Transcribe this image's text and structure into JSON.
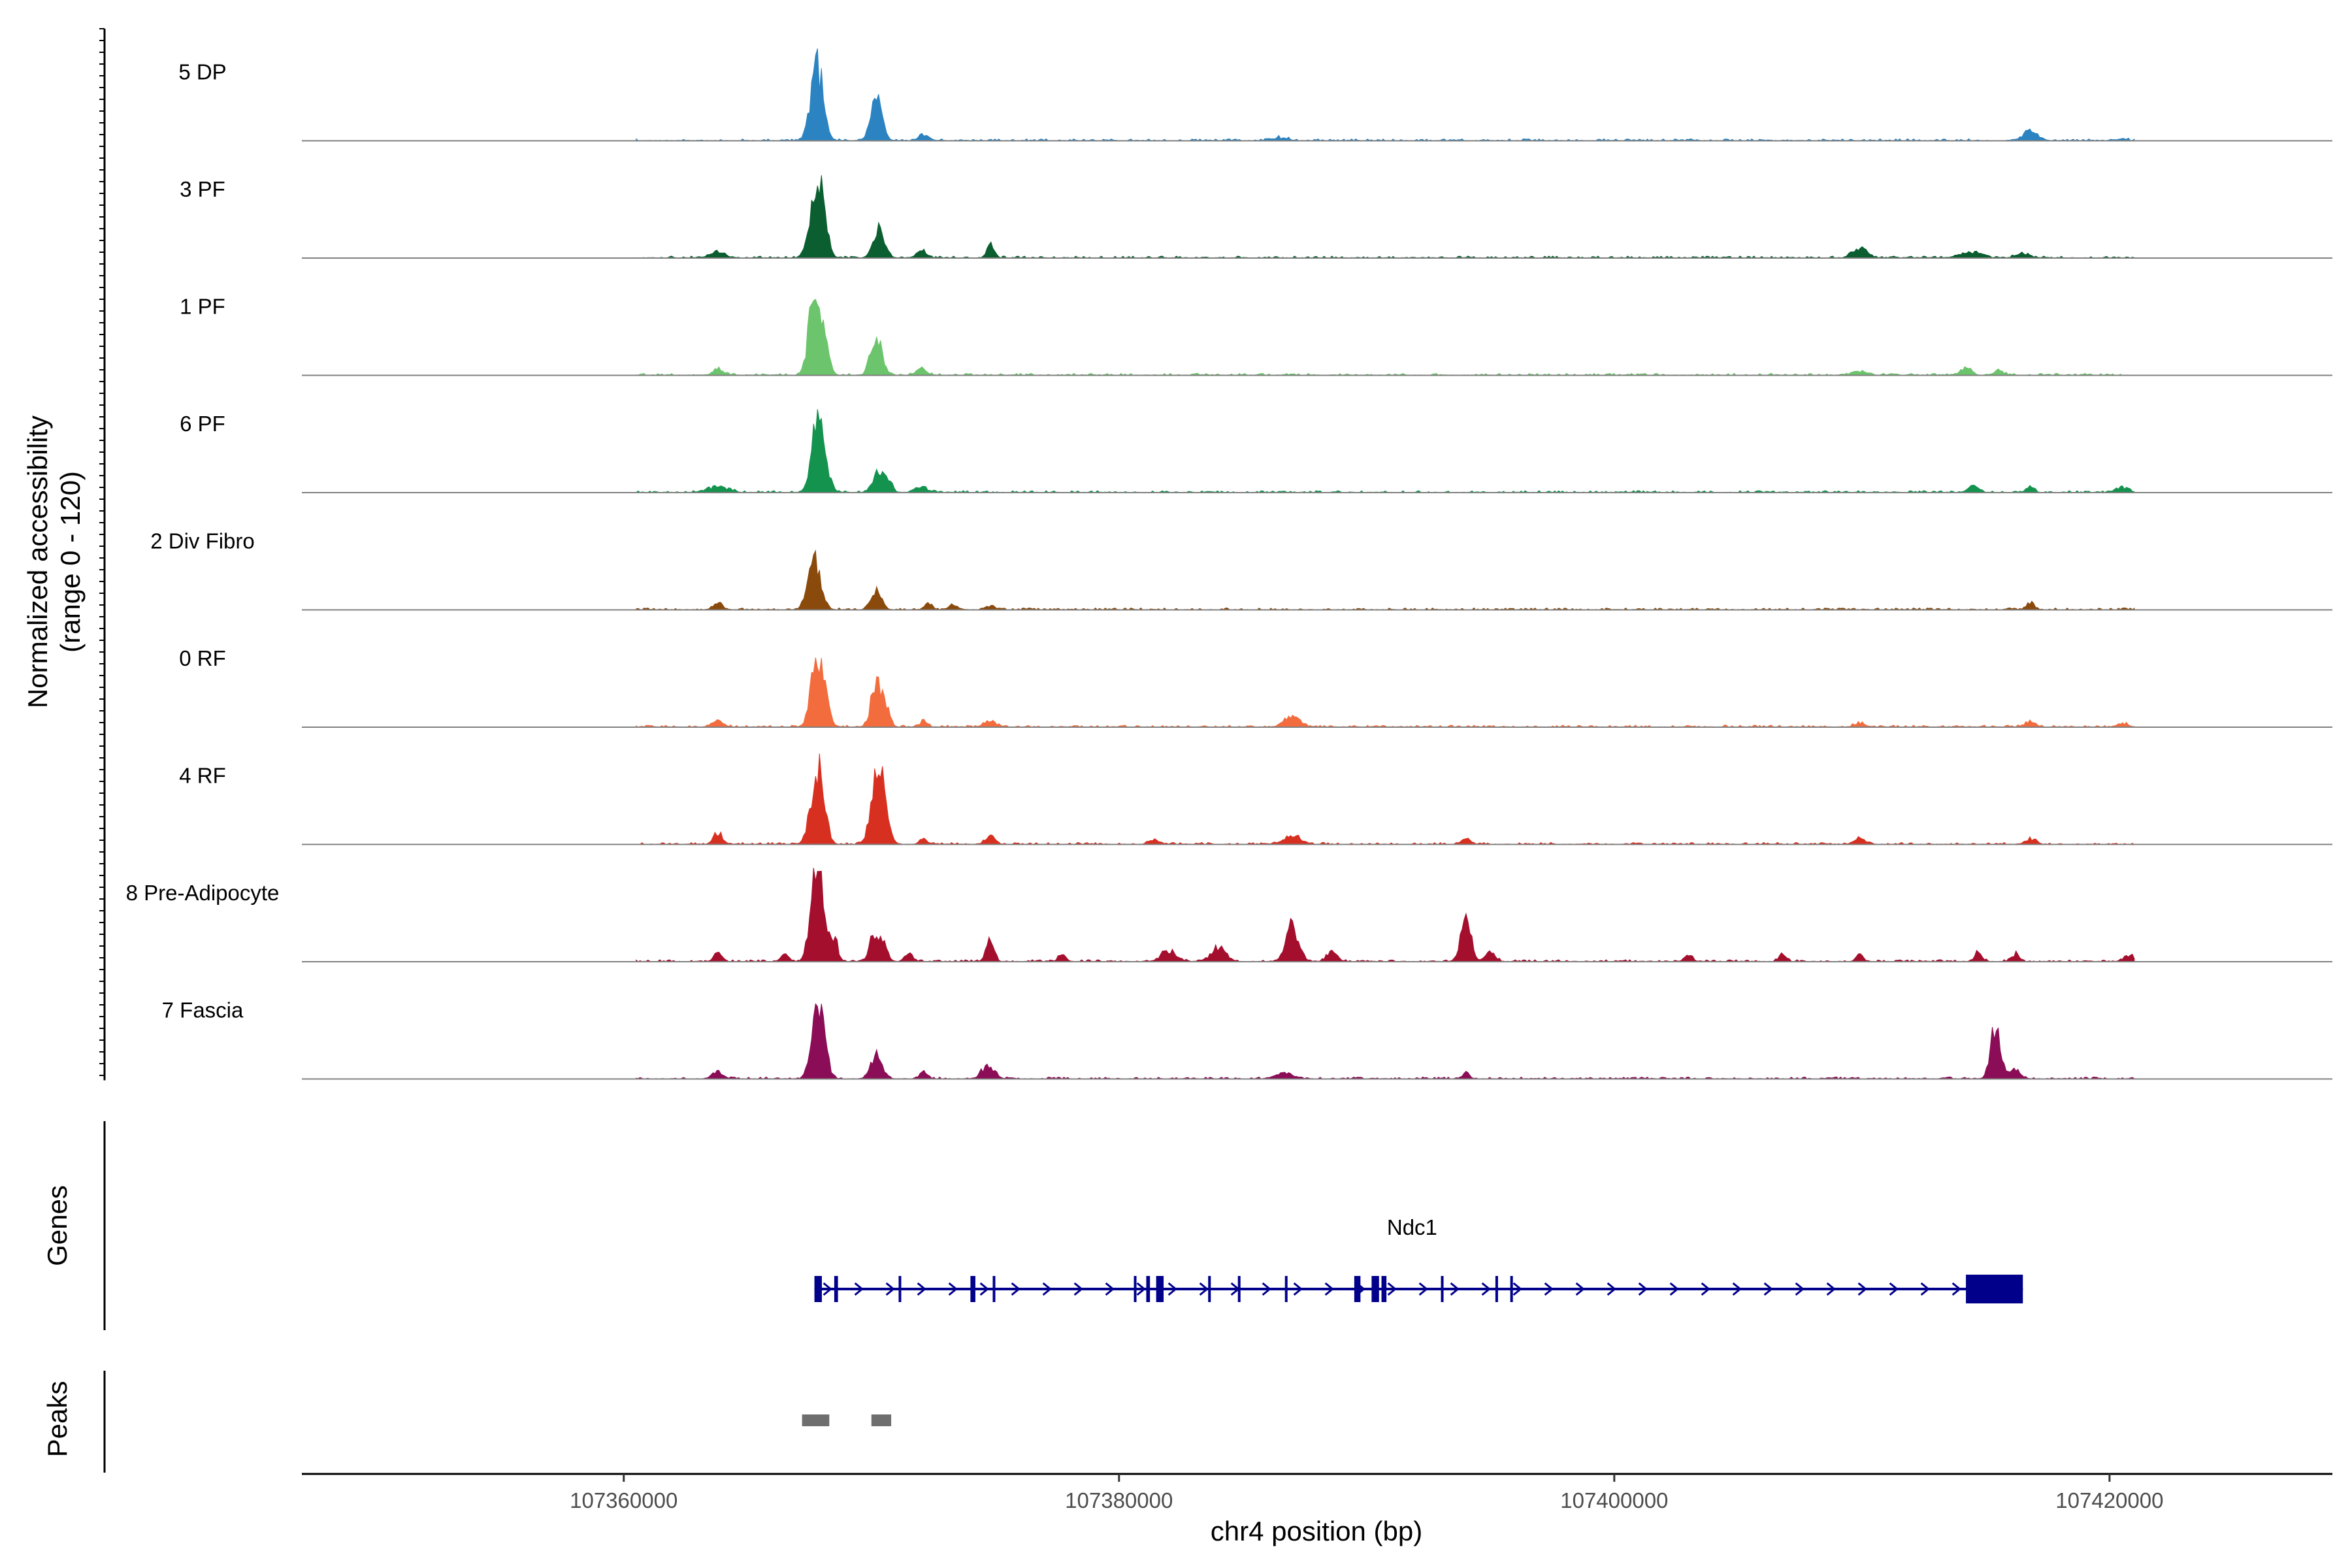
{
  "chart_data": {
    "type": "area",
    "ylabel_line1": "Normalized accessibility",
    "ylabel_line2": "(range 0 - 120)",
    "xlabel": "chr4 position (bp)",
    "xlim": [
      107347000,
      107429000
    ],
    "ylim": [
      0,
      120
    ],
    "x_ticks": [
      {
        "value": 107360000,
        "label": "107360000"
      },
      {
        "value": 107380000,
        "label": "107380000"
      },
      {
        "value": 107400000,
        "label": "107400000"
      },
      {
        "value": 107420000,
        "label": "107420000"
      }
    ],
    "series": [
      {
        "name": "5 DP",
        "color": "#2b83c1",
        "peaks": [
          [
            107367800,
            105,
            250
          ],
          [
            107370200,
            56,
            230
          ],
          [
            107372100,
            8,
            200
          ],
          [
            107386500,
            4,
            300
          ],
          [
            107416800,
            14,
            280
          ],
          [
            107420500,
            3,
            200
          ]
        ]
      },
      {
        "name": "3 PF",
        "color": "#0b5e2f",
        "peaks": [
          [
            107363800,
            8,
            300
          ],
          [
            107367700,
            75,
            230
          ],
          [
            107368000,
            70,
            200
          ],
          [
            107370300,
            38,
            220
          ],
          [
            107372000,
            10,
            200
          ],
          [
            107374800,
            16,
            150
          ],
          [
            107409900,
            14,
            280
          ],
          [
            107414400,
            8,
            400
          ],
          [
            107416500,
            5,
            300
          ]
        ]
      },
      {
        "name": "1 PF",
        "color": "#6cc46c",
        "peaks": [
          [
            107363800,
            10,
            200
          ],
          [
            107367600,
            85,
            180
          ],
          [
            107368000,
            80,
            200
          ],
          [
            107370200,
            55,
            220
          ],
          [
            107372000,
            9,
            200
          ],
          [
            107409900,
            5,
            300
          ],
          [
            107414200,
            10,
            200
          ],
          [
            107415500,
            6,
            200
          ]
        ]
      },
      {
        "name": "6 PF",
        "color": "#14934e",
        "peaks": [
          [
            107363800,
            8,
            400
          ],
          [
            107367700,
            58,
            200
          ],
          [
            107368000,
            64,
            230
          ],
          [
            107370300,
            32,
            200
          ],
          [
            107370700,
            16,
            150
          ],
          [
            107372000,
            8,
            250
          ],
          [
            107414500,
            9,
            200
          ],
          [
            107416800,
            9,
            150
          ],
          [
            107420500,
            7,
            250
          ]
        ]
      },
      {
        "name": "2 Div Fibro",
        "color": "#8a4a0c",
        "peaks": [
          [
            107363800,
            8,
            200
          ],
          [
            107367700,
            70,
            250
          ],
          [
            107370200,
            28,
            200
          ],
          [
            107372300,
            10,
            150
          ],
          [
            107373300,
            5,
            200
          ],
          [
            107374800,
            5,
            200
          ],
          [
            107416800,
            10,
            150
          ]
        ]
      },
      {
        "name": "0 RF",
        "color": "#f26c3e",
        "peaks": [
          [
            107363800,
            8,
            200
          ],
          [
            107367700,
            64,
            200
          ],
          [
            107368000,
            62,
            230
          ],
          [
            107370200,
            64,
            200
          ],
          [
            107370600,
            25,
            150
          ],
          [
            107372100,
            8,
            150
          ],
          [
            107374800,
            7,
            250
          ],
          [
            107387000,
            16,
            300
          ],
          [
            107409900,
            6,
            200
          ],
          [
            107416800,
            8,
            200
          ],
          [
            107420500,
            5,
            200
          ]
        ]
      },
      {
        "name": "4 RF",
        "color": "#d83020",
        "peaks": [
          [
            107363800,
            15,
            180
          ],
          [
            107367700,
            68,
            220
          ],
          [
            107368000,
            62,
            200
          ],
          [
            107370200,
            95,
            230
          ],
          [
            107370500,
            50,
            200
          ],
          [
            107372100,
            8,
            150
          ],
          [
            107374800,
            10,
            200
          ],
          [
            107381400,
            6,
            200
          ],
          [
            107387000,
            12,
            300
          ],
          [
            107394000,
            9,
            150
          ],
          [
            107409900,
            8,
            200
          ],
          [
            107416800,
            8,
            200
          ]
        ]
      },
      {
        "name": "8 Pre-Adipocyte",
        "color": "#a50f2e",
        "peaks": [
          [
            107363800,
            14,
            150
          ],
          [
            107366500,
            10,
            150
          ],
          [
            107367700,
            100,
            200
          ],
          [
            107368000,
            80,
            200
          ],
          [
            107368500,
            32,
            150
          ],
          [
            107370100,
            40,
            180
          ],
          [
            107370500,
            26,
            150
          ],
          [
            107371500,
            12,
            150
          ],
          [
            107374800,
            35,
            150
          ],
          [
            107377700,
            10,
            150
          ],
          [
            107382000,
            14,
            300
          ],
          [
            107384000,
            18,
            300
          ],
          [
            107387000,
            50,
            250
          ],
          [
            107388600,
            14,
            200
          ],
          [
            107394000,
            60,
            200
          ],
          [
            107395000,
            12,
            200
          ],
          [
            107403000,
            9,
            150
          ],
          [
            107406800,
            12,
            150
          ],
          [
            107409900,
            10,
            120
          ],
          [
            107414700,
            12,
            150
          ],
          [
            107416200,
            10,
            150
          ],
          [
            107420800,
            8,
            200
          ]
        ]
      },
      {
        "name": "7 Fascia",
        "color": "#8c0d57",
        "peaks": [
          [
            107363800,
            10,
            200
          ],
          [
            107367700,
            55,
            200
          ],
          [
            107368000,
            68,
            200
          ],
          [
            107370200,
            30,
            230
          ],
          [
            107372100,
            10,
            150
          ],
          [
            107374700,
            18,
            250
          ],
          [
            107386700,
            9,
            300
          ],
          [
            107394000,
            8,
            150
          ],
          [
            107415400,
            70,
            200
          ],
          [
            107416200,
            12,
            200
          ]
        ]
      }
    ],
    "genes": [
      {
        "name": "Ndc1",
        "start": 107367700,
        "end": 107416500,
        "strand": "+",
        "color": "#00008b",
        "exons": [
          [
            107367700,
            107368000
          ],
          [
            107368500,
            107368650
          ],
          [
            107371100,
            107371150
          ],
          [
            107374000,
            107374200
          ],
          [
            107374900,
            107375000
          ],
          [
            107380600,
            107380700
          ],
          [
            107381100,
            107381250
          ],
          [
            107381500,
            107381800
          ],
          [
            107383600,
            107383700
          ],
          [
            107384800,
            107384850
          ],
          [
            107386700,
            107386800
          ],
          [
            107389500,
            107389750
          ],
          [
            107390200,
            107390500
          ],
          [
            107390600,
            107390800
          ],
          [
            107393000,
            107393050
          ],
          [
            107395200,
            107395250
          ],
          [
            107395800,
            107395900
          ],
          [
            107414400,
            107414500
          ],
          [
            107414200,
            107416500
          ]
        ]
      }
    ],
    "peaks_track": [
      [
        107367200,
        107368300
      ],
      [
        107370000,
        107370800
      ]
    ],
    "panel_labels": {
      "genes": "Genes",
      "peaks": "Peaks"
    }
  }
}
